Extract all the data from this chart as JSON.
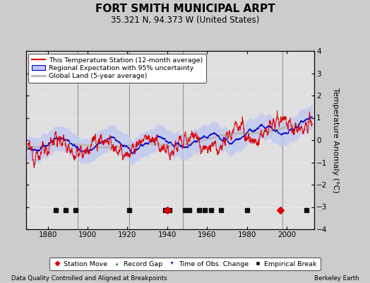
{
  "title": "FORT SMITH MUNICIPAL ARPT",
  "subtitle": "35.321 N, 94.373 W (United States)",
  "ylabel": "Temperature Anomaly (°C)",
  "footer_left": "Data Quality Controlled and Aligned at Breakpoints",
  "footer_right": "Berkeley Earth",
  "xlim": [
    1869,
    2014
  ],
  "ylim": [
    -4,
    4
  ],
  "yticks": [
    -4,
    -3,
    -2,
    -1,
    0,
    1,
    2,
    3,
    4
  ],
  "xticks": [
    1880,
    1900,
    1920,
    1940,
    1960,
    1980,
    2000
  ],
  "bg_color": "#cccccc",
  "plot_bg_color": "#e0e0e0",
  "grid_color": "#aaaaaa",
  "station_line_color": "#dd0000",
  "regional_line_color": "#0000cc",
  "regional_fill_color": "#c0c8f0",
  "global_line_color": "#b8b8b8",
  "vertical_line_color": "#888888",
  "vertical_lines": [
    1895,
    1921,
    1948,
    1998
  ],
  "empirical_breaks": [
    1884,
    1889,
    1894,
    1921,
    1939,
    1941,
    1949,
    1951,
    1956,
    1959,
    1962,
    1967,
    1980,
    2010
  ],
  "station_moves": [
    1940,
    1997
  ],
  "legend_labels": [
    "This Temperature Station (12-month average)",
    "Regional Expectation with 95% uncertainty",
    "Global Land (5-year average)"
  ]
}
